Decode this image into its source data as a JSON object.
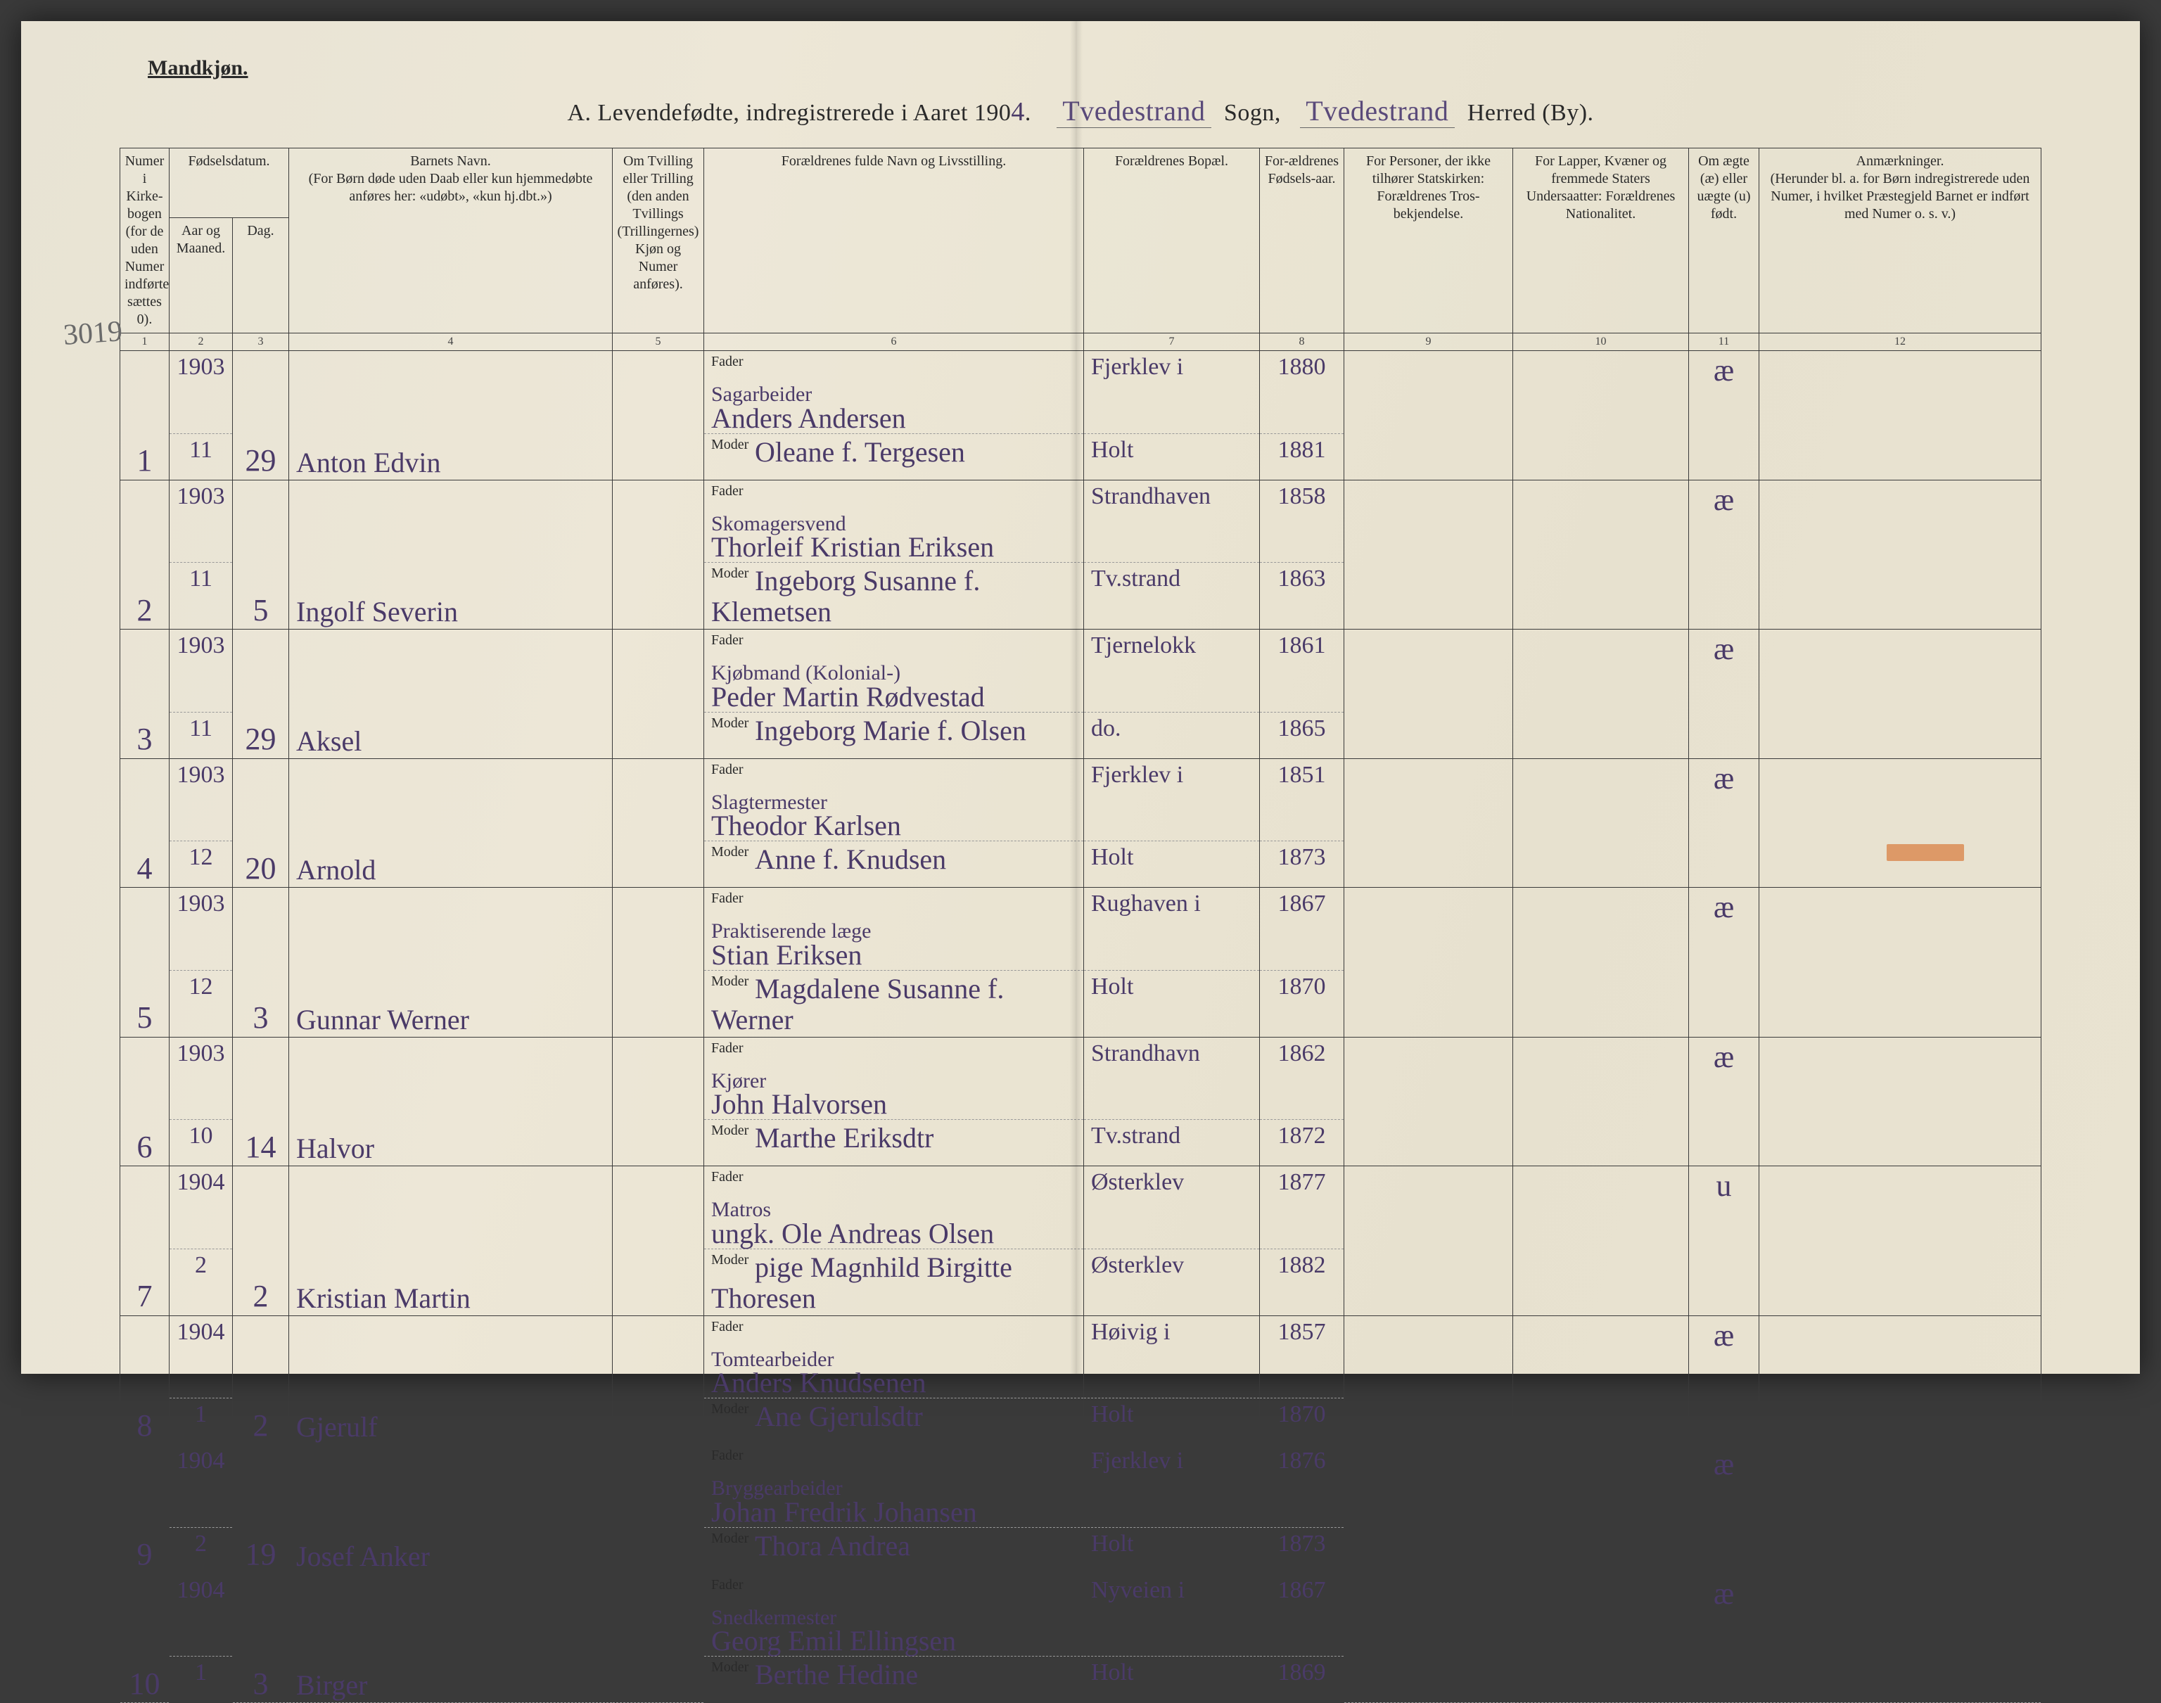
{
  "page": {
    "background_color": "#e9e3d1",
    "ink_color": "#4a3a68",
    "print_color": "#2a2a2a",
    "rule_color": "#3a3a3a",
    "red_stamp_color": "#d97a3b"
  },
  "header": {
    "gender": "Mandkjøn.",
    "title_prefix": "A.  Levendefødte, indregistrerede i Aaret 190",
    "year_suffix": "4",
    "sogn_label": "Sogn,",
    "herred_label": "Herred (By).",
    "sogn_value": "Tvedestrand",
    "herred_value": "Tvedestrand"
  },
  "margin_note": "3019",
  "columns": {
    "c1": {
      "head": "Numer i Kirke-bogen (for de uden Numer indførte sættes 0).",
      "num": "1"
    },
    "c2": {
      "head": "Fødselsdatum.",
      "sub_a": "Aar og Maaned.",
      "sub_b": "Dag.",
      "num": "2 · 3"
    },
    "c2a_num": "2",
    "c2b_num": "3",
    "c4": {
      "head": "Barnets Navn.\n(For Børn døde uden Daab eller kun hjemmedøbte anføres her: «udøbt», «kun hj.dbt.»)",
      "num": "4"
    },
    "c5": {
      "head": "Om Tvilling eller Trilling (den anden Tvillings (Trillingernes) Kjøn og Numer anføres).",
      "num": "5"
    },
    "c6": {
      "head": "Forældrenes fulde Navn og Livsstilling.",
      "num": "6"
    },
    "c7": {
      "head": "Forældrenes Bopæl.",
      "num": "7"
    },
    "c8": {
      "head": "For-ældrenes Fødsels-aar.",
      "num": "8"
    },
    "c9": {
      "head": "For Personer, der ikke tilhører Statskirken: Forældrenes Tros-bekjendelse.",
      "num": "9"
    },
    "c10": {
      "head": "For Lapper, Kvæner og fremmede Staters Undersaatter: Forældrenes Nationalitet.",
      "num": "10"
    },
    "c11": {
      "head": "Om ægte (æ) eller uægte (u) født.",
      "num": "11"
    },
    "c12": {
      "head": "Anmærkninger.\n(Herunder bl. a. for Børn indregistrerede uden Numer, i hvilket Præstegjeld Barnet er indført med Numer o. s. v.)",
      "num": "12"
    }
  },
  "labels": {
    "fader": "Fader",
    "moder": "Moder"
  },
  "rows": [
    {
      "n": "1",
      "year": "1903",
      "month": "11",
      "day": "29",
      "name": "Anton Edvin",
      "f_occ": "Sagarbeider",
      "f_name": "Anders Andersen",
      "m_name": "Oleane f. Tergesen",
      "f_place": "Fjerklev i",
      "m_place": "Holt",
      "f_year": "1880",
      "m_year": "1881",
      "legit": "æ"
    },
    {
      "n": "2",
      "year": "1903",
      "month": "11",
      "day": "5",
      "name": "Ingolf Severin",
      "f_occ": "Skomagersvend",
      "f_name": "Thorleif Kristian Eriksen",
      "m_name": "Ingeborg Susanne f. Klemetsen",
      "f_place": "Strandhaven",
      "m_place": "Tv.strand",
      "f_year": "1858",
      "m_year": "1863",
      "legit": "æ"
    },
    {
      "n": "3",
      "year": "1903",
      "month": "11",
      "day": "29",
      "name": "Aksel",
      "f_occ": "Kjøbmand (Kolonial-)",
      "f_name": "Peder Martin Rødvestad",
      "m_name": "Ingeborg Marie f. Olsen",
      "f_place": "Tjernelokk",
      "m_place": "do.",
      "f_year": "1861",
      "m_year": "1865",
      "legit": "æ"
    },
    {
      "n": "4",
      "year": "1903",
      "month": "12",
      "day": "20",
      "name": "Arnold",
      "f_occ": "Slagtermester",
      "f_name": "Theodor Karlsen",
      "m_name": "Anne f. Knudsen",
      "f_place": "Fjerklev i",
      "m_place": "Holt",
      "f_year": "1851",
      "m_year": "1873",
      "legit": "æ"
    },
    {
      "n": "5",
      "year": "1903",
      "month": "12",
      "day": "3",
      "name": "Gunnar Werner",
      "f_occ": "Praktiserende læge",
      "f_name": "Stian Eriksen",
      "m_name": "Magdalene Susanne f. Werner",
      "f_place": "Rughaven i",
      "m_place": "Holt",
      "f_year": "1867",
      "m_year": "1870",
      "legit": "æ"
    },
    {
      "n": "6",
      "year": "1903",
      "month": "10",
      "day": "14",
      "name": "Halvor",
      "f_occ": "Kjører",
      "f_name": "John Halvorsen",
      "m_name": "Marthe Eriksdtr",
      "f_place": "Strandhavn",
      "m_place": "Tv.strand",
      "f_year": "1862",
      "m_year": "1872",
      "legit": "æ"
    },
    {
      "n": "7",
      "year": "1904",
      "month": "2",
      "day": "2",
      "name": "Kristian Martin",
      "f_occ": "Matros",
      "f_name": "ungk. Ole Andreas Olsen",
      "m_name": "pige Magnhild Birgitte Thoresen",
      "f_place": "Østerklev",
      "m_place": "Østerklev",
      "f_year": "1877",
      "m_year": "1882",
      "legit": "u"
    },
    {
      "n": "8",
      "year": "1904",
      "month": "1",
      "day": "2",
      "name": "Gjerulf",
      "f_occ": "Tomtearbeider",
      "f_name": "Anders Knudsenen",
      "m_name": "Ane Gjerulsdtr",
      "f_place": "Høivig i",
      "m_place": "Holt",
      "f_year": "1857",
      "m_year": "1870",
      "legit": "æ"
    },
    {
      "n": "9",
      "year": "1904",
      "month": "2",
      "day": "19",
      "name": "Josef Anker",
      "f_occ": "Bryggearbeider",
      "f_name": "Johan Fredrik Johansen",
      "m_name": "Thora Andrea",
      "f_place": "Fjerklev i",
      "m_place": "Holt",
      "f_year": "1876",
      "m_year": "1873",
      "legit": "æ"
    },
    {
      "n": "10",
      "year": "1904",
      "month": "1",
      "day": "3",
      "name": "Birger",
      "f_occ": "Snedkermester",
      "f_name": "Georg Emil Ellingsen",
      "m_name": "Berthe Hedine",
      "f_place": "Nyveien i",
      "m_place": "Holt",
      "f_year": "1867",
      "m_year": "1869",
      "legit": "æ"
    }
  ]
}
